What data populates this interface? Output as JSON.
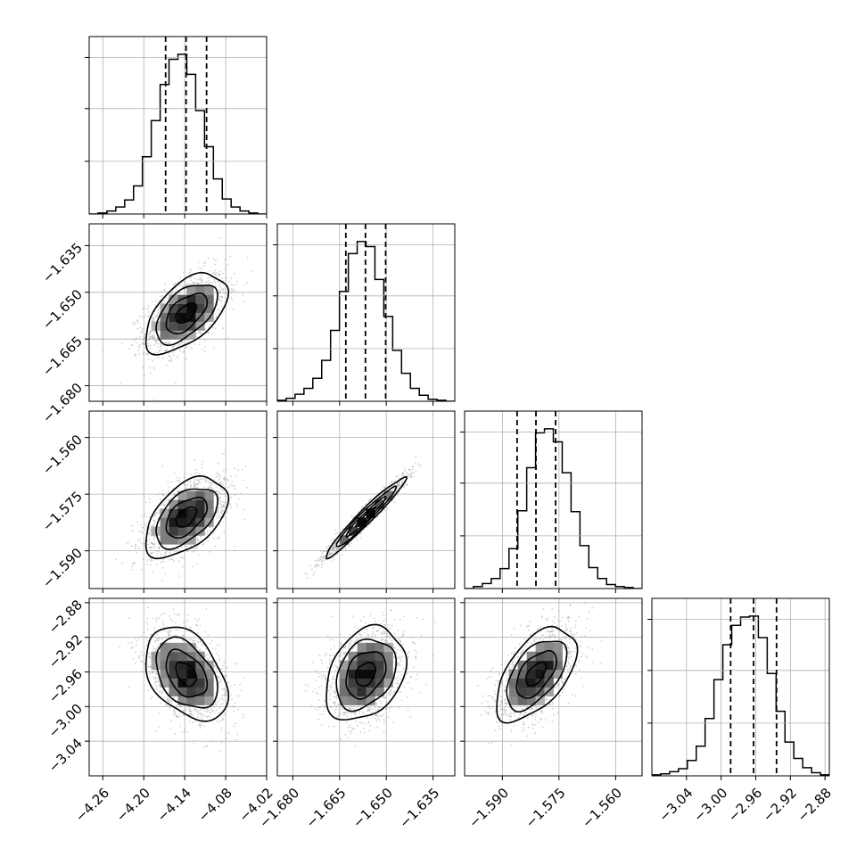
{
  "chart_data": {
    "type": "corner",
    "title": "",
    "grid": true,
    "histogram_marker_style": "dashed",
    "parameters": [
      {
        "name": "",
        "range": [
          -4.28,
          -4.02
        ],
        "tick_labels": [
          "−4.26",
          "−4.20",
          "−4.14",
          "−4.08",
          "−4.02"
        ],
        "tick_values": [
          -4.26,
          -4.2,
          -4.14,
          -4.08,
          -4.02
        ],
        "quantiles": [
          -4.168,
          -4.138,
          -4.108
        ],
        "mean": -4.138,
        "sd": 0.03,
        "histogram": {
          "bin_edges": [
            -4.28,
            -4.267,
            -4.254,
            -4.241,
            -4.228,
            -4.215,
            -4.202,
            -4.189,
            -4.176,
            -4.163,
            -4.15,
            -4.137,
            -4.124,
            -4.111,
            -4.098,
            -4.085,
            -4.072,
            -4.059,
            -4.046,
            -4.033,
            -4.02
          ],
          "counts": [
            0,
            1,
            3,
            7,
            14,
            28,
            57,
            93,
            129,
            154,
            159,
            139,
            103,
            67,
            35,
            15,
            7,
            3,
            1,
            0
          ]
        }
      },
      {
        "name": "",
        "range": [
          -1.685,
          -1.628
        ],
        "tick_labels": [
          "−1.680",
          "−1.665",
          "−1.650",
          "−1.635"
        ],
        "tick_values": [
          -1.68,
          -1.665,
          -1.65,
          -1.635
        ],
        "quantiles": [
          -1.663,
          -1.6567,
          -1.6502
        ],
        "mean": -1.6567,
        "sd": 0.0064,
        "histogram": {
          "bin_edges": [
            -1.685,
            -1.68215,
            -1.6793,
            -1.67645,
            -1.6736,
            -1.67075,
            -1.6679,
            -1.66505,
            -1.6622,
            -1.65935,
            -1.6565,
            -1.65365,
            -1.6508,
            -1.64795,
            -1.6451,
            -1.64225,
            -1.6394,
            -1.63655,
            -1.6337,
            -1.63085,
            -1.628
          ],
          "counts": [
            1,
            3,
            7,
            13,
            23,
            41,
            71,
            110,
            148,
            160,
            155,
            122,
            85,
            51,
            28,
            13,
            6,
            2,
            1,
            0
          ]
        }
      },
      {
        "name": "",
        "range": [
          -1.6,
          -1.553
        ],
        "tick_labels": [
          "−1.590",
          "−1.575",
          "−1.560"
        ],
        "tick_values": [
          -1.59,
          -1.575,
          -1.56
        ],
        "quantiles": [
          -1.5861,
          -1.5811,
          -1.5759
        ],
        "mean": -1.5811,
        "sd": 0.0053,
        "histogram": {
          "bin_edges": [
            -1.6,
            -1.59765,
            -1.5953,
            -1.59295,
            -1.5906,
            -1.58825,
            -1.5859,
            -1.58355,
            -1.5812,
            -1.57885,
            -1.5765,
            -1.57415,
            -1.5718,
            -1.56945,
            -1.5671,
            -1.56475,
            -1.5624,
            -1.56005,
            -1.5577,
            -1.55535,
            -1.553
          ],
          "counts": [
            0,
            2,
            5,
            10,
            20,
            40,
            78,
            121,
            156,
            160,
            147,
            116,
            77,
            43,
            21,
            10,
            4,
            2,
            1,
            0
          ]
        }
      },
      {
        "name": "",
        "range": [
          -3.08,
          -2.875
        ],
        "tick_labels": [
          "−3.04",
          "−3.00",
          "−2.96",
          "−2.92",
          "−2.88"
        ],
        "tick_values": [
          -3.04,
          -3.0,
          -2.96,
          -2.92,
          -2.88
        ],
        "quantiles": [
          -2.989,
          -2.9625,
          -2.936
        ],
        "mean": -2.9625,
        "sd": 0.027,
        "histogram": {
          "bin_edges": [
            -3.08,
            -3.06975,
            -3.0595,
            -3.04925,
            -3.039,
            -3.02875,
            -3.0185,
            -3.00825,
            -2.998,
            -2.98775,
            -2.9775,
            -2.96725,
            -2.957,
            -2.94675,
            -2.9365,
            -2.92625,
            -2.916,
            -2.90575,
            -2.8955,
            -2.88525,
            -2.875
          ],
          "counts": [
            1,
            2,
            4,
            7,
            15,
            29,
            56,
            94,
            128,
            147,
            155,
            156,
            135,
            100,
            63,
            33,
            17,
            8,
            3,
            1
          ]
        }
      }
    ],
    "correlations": [
      {
        "row": 1,
        "col": 0,
        "r": 0.55
      },
      {
        "row": 2,
        "col": 0,
        "r": 0.5
      },
      {
        "row": 2,
        "col": 1,
        "r": 0.97
      },
      {
        "row": 3,
        "col": 0,
        "r": -0.4
      },
      {
        "row": 3,
        "col": 1,
        "r": 0.3
      },
      {
        "row": 3,
        "col": 2,
        "r": 0.55
      }
    ],
    "contour_levels_sigma": [
      0.5,
      1.0,
      1.5,
      2.0
    ]
  }
}
